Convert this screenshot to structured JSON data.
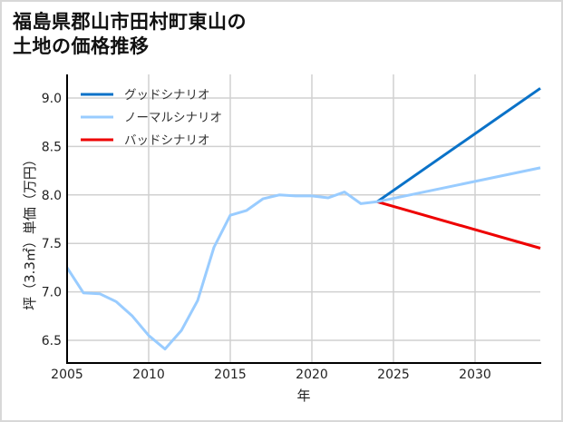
{
  "title": {
    "line1": "福島県郡山市田村町東山の",
    "line2": "土地の価格推移"
  },
  "axes": {
    "xlabel": "年",
    "ylabel": "坪（3.3㎡）単価（万円）",
    "xticks": [
      "2005",
      "2010",
      "2015",
      "2020",
      "2025",
      "2030"
    ],
    "yticks": [
      "6.5",
      "7.0",
      "7.5",
      "8.0",
      "8.5",
      "9.0"
    ]
  },
  "legend": {
    "good": "グッドシナリオ",
    "normal": "ノーマルシナリオ",
    "bad": "バッドシナリオ"
  },
  "colors": {
    "good": "#0a72c8",
    "normal": "#99ccff",
    "bad": "#ee0000",
    "grid": "#d0d0d0",
    "axis": "#000000"
  },
  "chart_data": {
    "type": "line",
    "title": "福島県郡山市田村町東山の土地の価格推移",
    "xlabel": "年",
    "ylabel": "坪（3.3㎡）単価（万円）",
    "xlim": [
      2005,
      2034
    ],
    "ylim": [
      6.27,
      9.24
    ],
    "grid": true,
    "legend_position": "upper left",
    "series": [
      {
        "name": "ノーマルシナリオ",
        "color": "#99ccff",
        "x": [
          2005,
          2006,
          2007,
          2008,
          2009,
          2010,
          2011,
          2012,
          2013,
          2014,
          2015,
          2016,
          2017,
          2018,
          2019,
          2020,
          2021,
          2022,
          2023,
          2024,
          2034
        ],
        "values": [
          7.25,
          6.99,
          6.98,
          6.9,
          6.75,
          6.55,
          6.41,
          6.6,
          6.91,
          7.46,
          7.79,
          7.84,
          7.96,
          8.0,
          7.99,
          7.99,
          7.97,
          8.03,
          7.91,
          7.93,
          8.28
        ]
      },
      {
        "name": "グッドシナリオ",
        "color": "#0a72c8",
        "x": [
          2024,
          2034
        ],
        "values": [
          7.93,
          9.1
        ]
      },
      {
        "name": "バッドシナリオ",
        "color": "#ee0000",
        "x": [
          2024,
          2034
        ],
        "values": [
          7.93,
          7.45
        ]
      }
    ]
  }
}
